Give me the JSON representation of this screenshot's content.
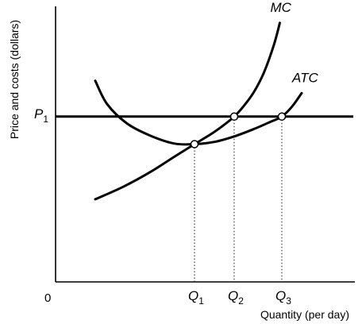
{
  "chart_data": {
    "type": "line",
    "xlabel": "Quantity (per day)",
    "ylabel": "Price and costs (dollars)",
    "origin_label": "0",
    "x_tick_labels": [
      {
        "name": "Q1",
        "base": "Q",
        "sub": "1",
        "x": 3.5
      },
      {
        "name": "Q2",
        "base": "Q",
        "sub": "2",
        "x": 4.5
      },
      {
        "name": "Q3",
        "base": "Q",
        "sub": "3",
        "x": 5.7
      }
    ],
    "y_tick_labels": [
      {
        "name": "P1",
        "base": "P",
        "sub": "1",
        "y": 6
      }
    ],
    "xlim": [
      0,
      7.6
    ],
    "ylim": [
      0,
      10
    ],
    "series": [
      {
        "name": "MC",
        "x": [
          1,
          1.7,
          2.4,
          3.0,
          3.5,
          3.9,
          4.2,
          4.5,
          4.75,
          5.0,
          5.25,
          5.5,
          5.65
        ],
        "y": [
          3.0,
          3.45,
          4.0,
          4.55,
          5.0,
          5.35,
          5.65,
          6.0,
          6.4,
          6.9,
          7.6,
          8.6,
          9.4
        ]
      },
      {
        "name": "ATC",
        "x": [
          1,
          1.3,
          1.8,
          2.4,
          3.0,
          3.5,
          4.0,
          4.5,
          5.0,
          5.4,
          5.7,
          5.95,
          6.2
        ],
        "y": [
          7.3,
          6.45,
          5.75,
          5.3,
          5.02,
          5.0,
          5.08,
          5.28,
          5.55,
          5.8,
          6.0,
          6.35,
          6.85
        ]
      }
    ],
    "horizontal_lines": [
      {
        "name": "P1",
        "y": 6,
        "x_from": 0,
        "x_to": 7.5
      }
    ],
    "points": [
      {
        "name": "min-atc",
        "x": 3.5,
        "y": 5.0
      },
      {
        "name": "mc-p1",
        "x": 4.5,
        "y": 6.0
      },
      {
        "name": "atc-p1",
        "x": 5.7,
        "y": 6.0
      }
    ],
    "grid": false,
    "legend": "none"
  }
}
